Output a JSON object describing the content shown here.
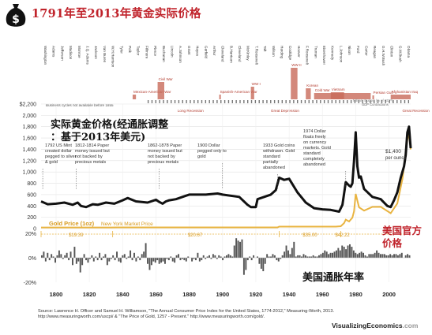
{
  "title": "1791年至2013年黄金实际价格",
  "icon": "money-bag-icon",
  "chart_data": {
    "type": "line",
    "xlim": [
      1791,
      2013
    ],
    "x_ticks": [
      1800,
      1820,
      1840,
      1860,
      1880,
      1900,
      1920,
      1940,
      1960,
      1980,
      2000
    ],
    "y_ticks": [
      "$2,200",
      "2,000",
      "1,800",
      "1,600",
      "1,400",
      "1,200",
      "1,000",
      "800",
      "600",
      "400",
      "200",
      "0"
    ],
    "ylim": [
      0,
      2200
    ],
    "real_gold_label": "实际黄金价格(经通胀调整：基于2013年美元)",
    "nominal_gold_label": "Gold Price (1oz)",
    "nominal_gold_sublabel": "New York Market Price",
    "annotation_official": "美国官方价格",
    "annotation_inflation": "美国通胀年率",
    "end_value_label": "$1,400",
    "end_value_sublabel": "per ounce",
    "real_gold_series": {
      "x": [
        1791,
        1795,
        1800,
        1805,
        1810,
        1813,
        1815,
        1818,
        1822,
        1825,
        1830,
        1835,
        1840,
        1843,
        1848,
        1855,
        1860,
        1862,
        1864,
        1866,
        1868,
        1872,
        1878,
        1880,
        1890,
        1897,
        1900,
        1910,
        1915,
        1917,
        1920,
        1921,
        1925,
        1929,
        1932,
        1934,
        1937,
        1940,
        1945,
        1950,
        1955,
        1960,
        1965,
        1970,
        1972,
        1974,
        1976,
        1977,
        1978,
        1979,
        1980,
        1981,
        1982,
        1983,
        1985,
        1990,
        1995,
        1999,
        2001,
        2003,
        2005,
        2007,
        2008,
        2009,
        2010,
        2011,
        2012,
        2013
      ],
      "y": [
        480,
        430,
        440,
        460,
        420,
        460,
        400,
        380,
        430,
        420,
        460,
        440,
        500,
        540,
        480,
        460,
        510,
        470,
        440,
        480,
        500,
        520,
        580,
        600,
        600,
        620,
        600,
        560,
        420,
        380,
        380,
        520,
        560,
        600,
        680,
        900,
        860,
        880,
        640,
        460,
        360,
        340,
        330,
        300,
        420,
        820,
        760,
        740,
        800,
        1200,
        1700,
        1100,
        900,
        920,
        700,
        560,
        520,
        400,
        380,
        500,
        640,
        900,
        1000,
        1100,
        1300,
        1700,
        1800,
        1420
      ]
    },
    "nominal_gold_series": {
      "x": [
        1791,
        1833,
        1837,
        1862,
        1879,
        1933,
        1934,
        1968,
        1971,
        1973,
        1974,
        1976,
        1978,
        1979,
        1980,
        1982,
        1985,
        1990,
        1995,
        2001,
        2005,
        2008,
        2011,
        2012,
        2013
      ],
      "y": [
        19.39,
        19.39,
        20.67,
        20.67,
        20.67,
        20.67,
        35,
        35,
        42,
        97,
        159,
        125,
        193,
        306,
        612,
        376,
        317,
        383,
        384,
        271,
        444,
        872,
        1571,
        1669,
        1400
      ],
      "segment_labels": [
        "$19.39",
        "$20.67",
        "$35.00",
        "$42.22"
      ],
      "segment_starts": [
        1791,
        1834,
        1934,
        1971
      ],
      "segment_ends": [
        1833,
        1933,
        1971,
        1973
      ]
    },
    "inflation": {
      "ylim": [
        -20,
        20
      ],
      "ticks": [
        "20%",
        "0%",
        "-20%"
      ],
      "values": [
        2,
        5,
        -3,
        4,
        -2,
        3,
        1,
        -4,
        2,
        6,
        3,
        -1,
        2,
        4,
        -2,
        5,
        -6,
        9,
        -5,
        -3,
        -12,
        -6,
        3,
        -2,
        -4,
        -1,
        2,
        -3,
        1,
        -2,
        4,
        -2,
        1,
        3,
        -6,
        -3,
        -1,
        2,
        -2,
        5,
        -3,
        -4,
        2,
        3,
        -1,
        1,
        6,
        -2,
        4,
        -3,
        1,
        -2,
        3,
        5,
        12,
        -5,
        -10,
        -6,
        -3,
        -4,
        -2,
        -5,
        -4,
        -3,
        -5,
        -1,
        -2,
        1,
        -3,
        -4,
        2,
        3,
        -2,
        -1,
        -2,
        -3,
        1,
        0,
        -3,
        -1,
        -2,
        4,
        -3,
        -2,
        2,
        -1,
        1,
        2,
        -1,
        3,
        2,
        -1,
        2,
        1,
        -2,
        1,
        2,
        3,
        2,
        1,
        10,
        16,
        14,
        13,
        15,
        -14,
        -10,
        -2,
        1,
        -2,
        2,
        0,
        1,
        -5,
        -9,
        -11,
        -5,
        3,
        1,
        1,
        3,
        2,
        -2,
        -3,
        -1,
        2,
        5,
        10,
        6,
        3,
        8,
        13,
        1,
        2,
        2,
        1,
        3,
        2,
        1,
        1,
        1,
        2,
        1,
        1,
        2,
        3,
        4,
        6,
        5,
        3,
        4,
        4,
        5,
        6,
        8,
        6,
        10,
        9,
        7,
        10,
        11,
        9,
        6,
        4,
        3,
        4,
        5,
        4,
        2,
        1,
        3,
        3,
        3,
        4,
        6,
        4,
        3,
        3,
        3,
        2,
        2,
        3,
        2,
        3,
        3,
        2,
        3,
        4,
        0,
        2,
        3,
        2
      ]
    },
    "business_cycle_note": "Business cycles not available before 1855",
    "military_label": "Military Budget (% of GDP)",
    "gdp_label": "GDP Contractions",
    "presidents": [
      "Washington",
      "Adams",
      "Jefferson",
      "Madison",
      "Monroe",
      "J.Q. Adams",
      "Jackson",
      "Van Buren",
      "W.H.Harrison",
      "Tyler",
      "Polk",
      "Taylor",
      "Fillmore",
      "Pierce",
      "Buchanan",
      "Lincoln",
      "A.Johnson",
      "Grant",
      "Hayes",
      "Garfield",
      "Arthur",
      "Cleveland",
      "B.Harrison",
      "Cleveland",
      "McKinley",
      "T.Roosevelt",
      "Taft",
      "Wilson",
      "Harding",
      "Coolidge",
      "Hoover",
      "F.Roosevelt",
      "Truman",
      "Eisenhower",
      "Kennedy",
      "L.Johnson",
      "Nixon",
      "Ford",
      "Carter",
      "Reagan",
      "G.H.W.Bush",
      "Clinton",
      "G.W.Bush",
      "Obama"
    ],
    "wars": [
      "Mexican-American War",
      "Civil War",
      "Spanish-American War",
      "WW I",
      "WW II",
      "Korean",
      "Cold War",
      "Vietnam",
      "Persian Gulf",
      "Afghanistan Iraq"
    ],
    "recessions": [
      "Long Recession",
      "Great Depression",
      "Great Recession"
    ],
    "annotations": [
      "1792 US Mint created dollar pegged to silver & gold",
      "1812-1814 Paper money issued but not backed by precious metals",
      "1862-1878 Paper money issued but not backed by precious metals",
      "1900 Dollar pegged only to gold",
      "1933 Gold coins withdrawn. Gold standard partially abandoned",
      "1974 Dollar floats freely on currency markets. Gold standard completely abandoned"
    ],
    "colors": {
      "real": "#111111",
      "nominal": "#e9b441",
      "accent": "#c0232b",
      "bars": "#555555",
      "war": "#c86a5a"
    }
  },
  "source": "Source: Lawrence H. Officer and Samuel H. Williamson, \"The Annual Consumer Price Index for the United States, 1774-2012,\" Measuring-Worth, 2013. http://www.measuringworth.com/uscpi/ & \"The Price of Gold, 1257 - Present.\" http://www.measuringworth.com/gold/.",
  "brand_main": "VisualizingEconomics",
  "brand_suffix": ".com"
}
